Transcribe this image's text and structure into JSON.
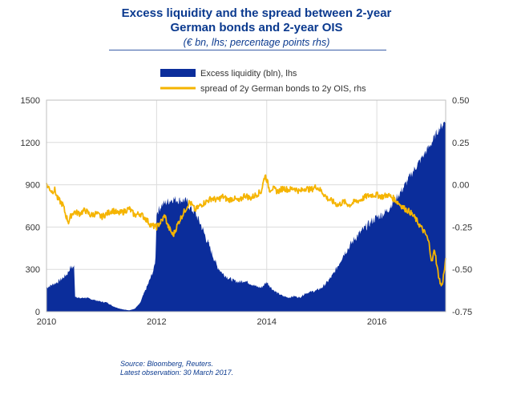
{
  "title_line1": "Excess liquidity and the spread between 2-year",
  "title_line2": "German bonds and 2-year OIS",
  "subtitle": "(€ bn, lhs; percentage points rhs)",
  "source": "Source: Bloomberg, Reuters.",
  "latest_observation": "Latest observation: 30 March 2017.",
  "colors": {
    "excess_liquidity": "#0b2d9b",
    "spread": "#f5b400",
    "text": "#0b3a8f",
    "grid": "#dcdcdc"
  },
  "chart_data": {
    "type": "area+line",
    "title": "Excess liquidity and the spread between 2-year German bonds and 2-year OIS",
    "legend_position": "top",
    "x_ticks": [
      "2010",
      "2012",
      "2014",
      "2016"
    ],
    "x_range": [
      2010.0,
      2017.25
    ],
    "y_left": {
      "label": "€ bn",
      "range": [
        0,
        1500
      ],
      "ticks": [
        "0",
        "300",
        "600",
        "900",
        "1200",
        "1500"
      ]
    },
    "y_right": {
      "label": "percentage points",
      "range": [
        -0.75,
        0.5
      ],
      "ticks": [
        "-0.75",
        "-0.50",
        "-0.25",
        "0.00",
        "0.25",
        "0.50"
      ]
    },
    "series": [
      {
        "name": "Excess liquidity (bln), lhs",
        "kind": "area",
        "axis": "left",
        "points": [
          [
            2010.0,
            170
          ],
          [
            2010.1,
            190
          ],
          [
            2010.2,
            210
          ],
          [
            2010.3,
            240
          ],
          [
            2010.38,
            270
          ],
          [
            2010.43,
            310
          ],
          [
            2010.5,
            320
          ],
          [
            2010.52,
            110
          ],
          [
            2010.6,
            95
          ],
          [
            2010.7,
            100
          ],
          [
            2010.8,
            90
          ],
          [
            2010.9,
            80
          ],
          [
            2011.0,
            70
          ],
          [
            2011.1,
            65
          ],
          [
            2011.2,
            40
          ],
          [
            2011.3,
            25
          ],
          [
            2011.4,
            15
          ],
          [
            2011.5,
            10
          ],
          [
            2011.6,
            20
          ],
          [
            2011.7,
            60
          ],
          [
            2011.75,
            110
          ],
          [
            2011.85,
            200
          ],
          [
            2011.95,
            300
          ],
          [
            2011.98,
            380
          ],
          [
            2012.0,
            700
          ],
          [
            2012.1,
            760
          ],
          [
            2012.2,
            780
          ],
          [
            2012.3,
            800
          ],
          [
            2012.4,
            790
          ],
          [
            2012.5,
            790
          ],
          [
            2012.55,
            780
          ],
          [
            2012.6,
            740
          ],
          [
            2012.7,
            700
          ],
          [
            2012.8,
            620
          ],
          [
            2012.9,
            520
          ],
          [
            2013.0,
            420
          ],
          [
            2013.1,
            320
          ],
          [
            2013.2,
            270
          ],
          [
            2013.3,
            240
          ],
          [
            2013.4,
            220
          ],
          [
            2013.5,
            210
          ],
          [
            2013.6,
            220
          ],
          [
            2013.7,
            200
          ],
          [
            2013.8,
            180
          ],
          [
            2013.9,
            170
          ],
          [
            2014.0,
            210
          ],
          [
            2014.1,
            160
          ],
          [
            2014.2,
            130
          ],
          [
            2014.3,
            110
          ],
          [
            2014.4,
            100
          ],
          [
            2014.5,
            110
          ],
          [
            2014.6,
            100
          ],
          [
            2014.7,
            130
          ],
          [
            2014.8,
            140
          ],
          [
            2014.9,
            150
          ],
          [
            2015.0,
            170
          ],
          [
            2015.1,
            210
          ],
          [
            2015.2,
            260
          ],
          [
            2015.3,
            330
          ],
          [
            2015.4,
            410
          ],
          [
            2015.5,
            460
          ],
          [
            2015.6,
            520
          ],
          [
            2015.7,
            560
          ],
          [
            2015.8,
            600
          ],
          [
            2015.9,
            640
          ],
          [
            2016.0,
            670
          ],
          [
            2016.1,
            690
          ],
          [
            2016.2,
            720
          ],
          [
            2016.3,
            780
          ],
          [
            2016.4,
            830
          ],
          [
            2016.5,
            890
          ],
          [
            2016.6,
            960
          ],
          [
            2016.7,
            1020
          ],
          [
            2016.8,
            1080
          ],
          [
            2016.9,
            1140
          ],
          [
            2017.0,
            1200
          ],
          [
            2017.1,
            1280
          ],
          [
            2017.2,
            1330
          ],
          [
            2017.25,
            1360
          ]
        ]
      },
      {
        "name": "spread of 2y German bonds to 2y OIS, rhs",
        "kind": "line",
        "axis": "right",
        "points": [
          [
            2010.0,
            0.0
          ],
          [
            2010.05,
            -0.02
          ],
          [
            2010.1,
            -0.04
          ],
          [
            2010.15,
            -0.03
          ],
          [
            2010.2,
            -0.08
          ],
          [
            2010.25,
            -0.1
          ],
          [
            2010.3,
            -0.12
          ],
          [
            2010.35,
            -0.18
          ],
          [
            2010.4,
            -0.22
          ],
          [
            2010.45,
            -0.18
          ],
          [
            2010.5,
            -0.16
          ],
          [
            2010.6,
            -0.17
          ],
          [
            2010.7,
            -0.15
          ],
          [
            2010.8,
            -0.18
          ],
          [
            2010.9,
            -0.17
          ],
          [
            2011.0,
            -0.19
          ],
          [
            2011.1,
            -0.17
          ],
          [
            2011.2,
            -0.15
          ],
          [
            2011.3,
            -0.17
          ],
          [
            2011.4,
            -0.16
          ],
          [
            2011.5,
            -0.14
          ],
          [
            2011.6,
            -0.18
          ],
          [
            2011.7,
            -0.17
          ],
          [
            2011.8,
            -0.2
          ],
          [
            2011.9,
            -0.24
          ],
          [
            2012.0,
            -0.25
          ],
          [
            2012.1,
            -0.21
          ],
          [
            2012.15,
            -0.18
          ],
          [
            2012.2,
            -0.24
          ],
          [
            2012.3,
            -0.3
          ],
          [
            2012.4,
            -0.22
          ],
          [
            2012.5,
            -0.16
          ],
          [
            2012.6,
            -0.1
          ],
          [
            2012.7,
            -0.15
          ],
          [
            2012.8,
            -0.12
          ],
          [
            2012.9,
            -0.1
          ],
          [
            2013.0,
            -0.08
          ],
          [
            2013.1,
            -0.09
          ],
          [
            2013.2,
            -0.07
          ],
          [
            2013.3,
            -0.09
          ],
          [
            2013.4,
            -0.08
          ],
          [
            2013.5,
            -0.1
          ],
          [
            2013.6,
            -0.06
          ],
          [
            2013.7,
            -0.08
          ],
          [
            2013.8,
            -0.06
          ],
          [
            2013.9,
            -0.04
          ],
          [
            2013.97,
            0.06
          ],
          [
            2014.0,
            0.03
          ],
          [
            2014.05,
            -0.03
          ],
          [
            2014.1,
            -0.02
          ],
          [
            2014.2,
            -0.04
          ],
          [
            2014.3,
            -0.02
          ],
          [
            2014.4,
            -0.03
          ],
          [
            2014.5,
            -0.02
          ],
          [
            2014.6,
            -0.04
          ],
          [
            2014.7,
            -0.02
          ],
          [
            2014.8,
            -0.03
          ],
          [
            2014.9,
            -0.01
          ],
          [
            2015.0,
            -0.04
          ],
          [
            2015.1,
            -0.08
          ],
          [
            2015.2,
            -0.1
          ],
          [
            2015.3,
            -0.12
          ],
          [
            2015.4,
            -0.1
          ],
          [
            2015.5,
            -0.12
          ],
          [
            2015.6,
            -0.1
          ],
          [
            2015.7,
            -0.09
          ],
          [
            2015.8,
            -0.07
          ],
          [
            2015.9,
            -0.06
          ],
          [
            2016.0,
            -0.06
          ],
          [
            2016.1,
            -0.07
          ],
          [
            2016.2,
            -0.06
          ],
          [
            2016.3,
            -0.08
          ],
          [
            2016.4,
            -0.11
          ],
          [
            2016.5,
            -0.14
          ],
          [
            2016.6,
            -0.16
          ],
          [
            2016.7,
            -0.2
          ],
          [
            2016.8,
            -0.25
          ],
          [
            2016.9,
            -0.3
          ],
          [
            2016.95,
            -0.35
          ],
          [
            2017.0,
            -0.46
          ],
          [
            2017.05,
            -0.38
          ],
          [
            2017.1,
            -0.5
          ],
          [
            2017.15,
            -0.58
          ],
          [
            2017.18,
            -0.6
          ],
          [
            2017.22,
            -0.52
          ],
          [
            2017.25,
            -0.45
          ]
        ]
      }
    ]
  }
}
